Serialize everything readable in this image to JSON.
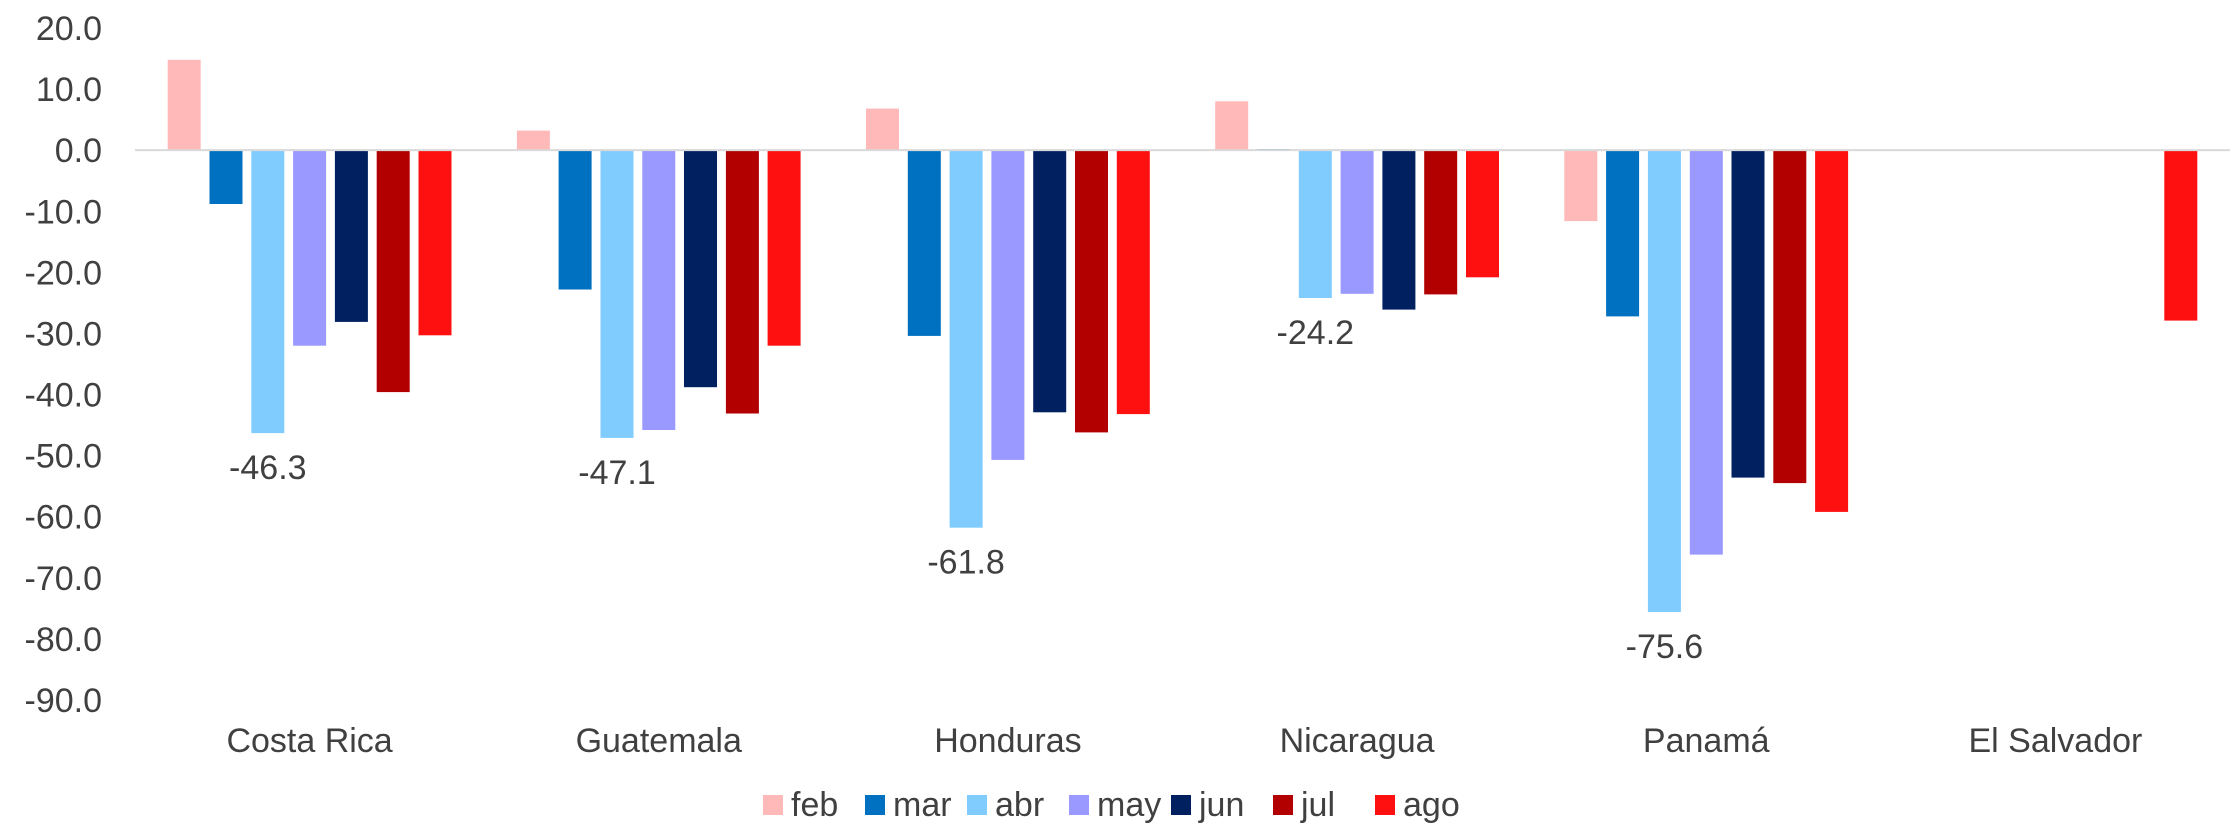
{
  "chart_data": {
    "type": "bar",
    "categories": [
      "Costa Rica",
      "Guatemala",
      "Honduras",
      "Nicaragua",
      "Panamá",
      "El Salvador"
    ],
    "series": [
      {
        "name": "feb",
        "color": "#ffb9b9",
        "values": [
          14.8,
          3.2,
          6.8,
          8.0,
          -11.6,
          null
        ]
      },
      {
        "name": "mar",
        "color": "#0070c0",
        "values": [
          -8.8,
          -22.8,
          -30.4,
          0.2,
          -27.2,
          null
        ]
      },
      {
        "name": "abr",
        "color": "#80ccff",
        "values": [
          -46.3,
          -47.1,
          -61.8,
          -24.2,
          -75.6,
          null
        ]
      },
      {
        "name": "may",
        "color": "#9999ff",
        "values": [
          -32.0,
          -45.8,
          -50.7,
          -23.5,
          -66.2,
          null
        ]
      },
      {
        "name": "jun",
        "color": "#002060",
        "values": [
          -28.1,
          -38.8,
          -42.9,
          -26.1,
          -53.6,
          null
        ]
      },
      {
        "name": "jul",
        "color": "#b20000",
        "values": [
          -39.6,
          -43.1,
          -46.2,
          -23.6,
          -54.5,
          null
        ]
      },
      {
        "name": "ago",
        "color": "#ff1010",
        "values": [
          -30.3,
          -32.0,
          -43.2,
          -20.8,
          -59.2,
          -27.9
        ]
      }
    ],
    "data_labels": [
      {
        "series": "abr",
        "category": "Costa Rica",
        "text": "-46.3"
      },
      {
        "series": "abr",
        "category": "Guatemala",
        "text": "-47.1"
      },
      {
        "series": "abr",
        "category": "Honduras",
        "text": "-61.8"
      },
      {
        "series": "abr",
        "category": "Nicaragua",
        "text": "-24.2"
      },
      {
        "series": "abr",
        "category": "Panamá",
        "text": "-75.6"
      }
    ],
    "y_ticks": [
      "20.0",
      "10.0",
      "0.0",
      "-10.0",
      "-20.0",
      "-30.0",
      "-40.0",
      "-50.0",
      "-60.0",
      "-70.0",
      "-80.0",
      "-90.0"
    ],
    "ylim": [
      -90,
      20
    ],
    "title": "",
    "xlabel": "",
    "ylabel": "",
    "grid": false,
    "legend_position": "bottom-center"
  }
}
